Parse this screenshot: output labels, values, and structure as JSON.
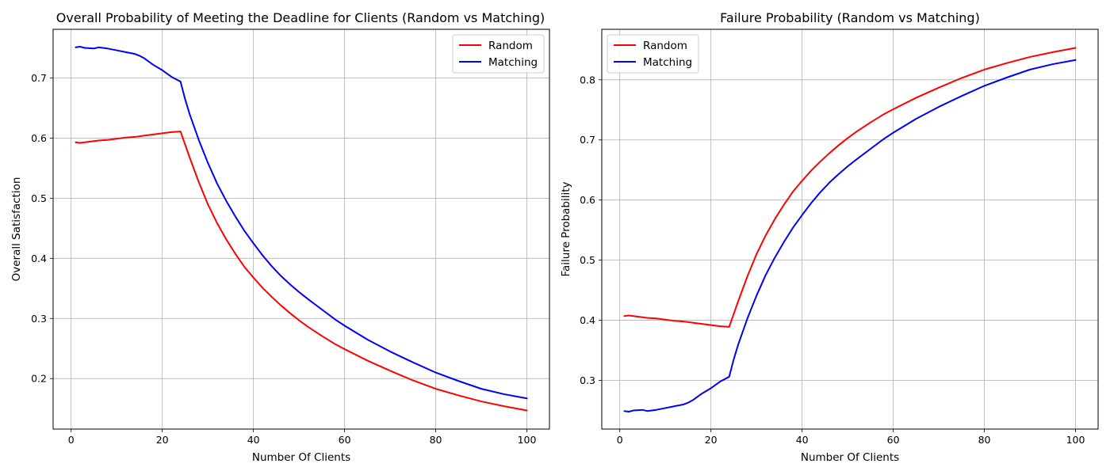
{
  "chart_data": [
    {
      "type": "line",
      "title": "Overall Probability of Meeting the Deadline for Clients (Random vs Matching)",
      "xlabel": "Number Of Clients",
      "ylabel": "Overall Satisfaction",
      "xlim": [
        -3.95,
        104.95
      ],
      "ylim": [
        0.116,
        0.781
      ],
      "xticks": [
        0,
        20,
        40,
        60,
        80,
        100
      ],
      "xtick_labels": [
        "0",
        "20",
        "40",
        "60",
        "80",
        "100"
      ],
      "yticks": [
        0.2,
        0.3,
        0.4,
        0.5,
        0.6,
        0.7
      ],
      "ytick_labels": [
        "0.2",
        "0.3",
        "0.4",
        "0.5",
        "0.6",
        "0.7"
      ],
      "grid": true,
      "legend_position": "top-right",
      "series": [
        {
          "name": "Random",
          "color": "#ff0000",
          "points": [
            [
              1,
              0.593
            ],
            [
              2,
              0.592
            ],
            [
              4,
              0.594
            ],
            [
              6,
              0.596
            ],
            [
              8,
              0.597
            ],
            [
              10,
              0.599
            ],
            [
              12,
              0.601
            ],
            [
              14,
              0.602
            ],
            [
              16,
              0.604
            ],
            [
              18,
              0.606
            ],
            [
              20,
              0.608
            ],
            [
              22,
              0.61
            ],
            [
              24,
              0.611
            ],
            [
              26,
              0.568
            ],
            [
              28,
              0.527
            ],
            [
              30,
              0.49
            ],
            [
              32,
              0.459
            ],
            [
              34,
              0.432
            ],
            [
              36,
              0.408
            ],
            [
              38,
              0.386
            ],
            [
              40,
              0.368
            ],
            [
              42,
              0.351
            ],
            [
              44,
              0.336
            ],
            [
              46,
              0.322
            ],
            [
              48,
              0.309
            ],
            [
              50,
              0.297
            ],
            [
              52,
              0.286
            ],
            [
              55,
              0.271
            ],
            [
              58,
              0.257
            ],
            [
              60,
              0.249
            ],
            [
              65,
              0.23
            ],
            [
              70,
              0.213
            ],
            [
              75,
              0.197
            ],
            [
              80,
              0.183
            ],
            [
              85,
              0.172
            ],
            [
              90,
              0.162
            ],
            [
              95,
              0.154
            ],
            [
              100,
              0.147
            ]
          ]
        },
        {
          "name": "Matching",
          "color": "#0000ff",
          "points": [
            [
              1,
              0.751
            ],
            [
              2,
              0.752
            ],
            [
              3,
              0.75
            ],
            [
              5,
              0.749
            ],
            [
              6,
              0.751
            ],
            [
              8,
              0.749
            ],
            [
              10,
              0.746
            ],
            [
              12,
              0.743
            ],
            [
              14,
              0.74
            ],
            [
              15,
              0.737
            ],
            [
              16,
              0.733
            ],
            [
              18,
              0.722
            ],
            [
              20,
              0.713
            ],
            [
              22,
              0.702
            ],
            [
              24,
              0.694
            ],
            [
              25,
              0.665
            ],
            [
              26,
              0.64
            ],
            [
              28,
              0.597
            ],
            [
              30,
              0.559
            ],
            [
              32,
              0.525
            ],
            [
              34,
              0.496
            ],
            [
              36,
              0.47
            ],
            [
              38,
              0.446
            ],
            [
              40,
              0.425
            ],
            [
              42,
              0.405
            ],
            [
              44,
              0.387
            ],
            [
              46,
              0.371
            ],
            [
              48,
              0.357
            ],
            [
              50,
              0.344
            ],
            [
              52,
              0.332
            ],
            [
              55,
              0.315
            ],
            [
              58,
              0.298
            ],
            [
              60,
              0.288
            ],
            [
              65,
              0.265
            ],
            [
              70,
              0.245
            ],
            [
              75,
              0.227
            ],
            [
              80,
              0.21
            ],
            [
              85,
              0.196
            ],
            [
              90,
              0.183
            ],
            [
              95,
              0.174
            ],
            [
              100,
              0.167
            ]
          ]
        }
      ]
    },
    {
      "type": "line",
      "title": "Failure Probability (Random vs Matching)",
      "xlabel": "Number Of Clients",
      "ylabel": "Failure Probability",
      "xlim": [
        -3.95,
        104.95
      ],
      "ylim": [
        0.219,
        0.884
      ],
      "xticks": [
        0,
        20,
        40,
        60,
        80,
        100
      ],
      "xtick_labels": [
        "0",
        "20",
        "40",
        "60",
        "80",
        "100"
      ],
      "yticks": [
        0.3,
        0.4,
        0.5,
        0.6,
        0.7,
        0.8
      ],
      "ytick_labels": [
        "0.3",
        "0.4",
        "0.5",
        "0.6",
        "0.7",
        "0.8"
      ],
      "grid": true,
      "legend_position": "top-left",
      "series": [
        {
          "name": "Random",
          "color": "#ff0000",
          "points": [
            [
              1,
              0.407
            ],
            [
              2,
              0.408
            ],
            [
              4,
              0.406
            ],
            [
              6,
              0.404
            ],
            [
              8,
              0.403
            ],
            [
              10,
              0.401
            ],
            [
              12,
              0.399
            ],
            [
              14,
              0.398
            ],
            [
              16,
              0.396
            ],
            [
              18,
              0.394
            ],
            [
              20,
              0.392
            ],
            [
              22,
              0.39
            ],
            [
              24,
              0.389
            ],
            [
              26,
              0.432
            ],
            [
              28,
              0.473
            ],
            [
              30,
              0.51
            ],
            [
              32,
              0.541
            ],
            [
              34,
              0.568
            ],
            [
              36,
              0.592
            ],
            [
              38,
              0.614
            ],
            [
              40,
              0.632
            ],
            [
              42,
              0.649
            ],
            [
              44,
              0.664
            ],
            [
              46,
              0.678
            ],
            [
              48,
              0.691
            ],
            [
              50,
              0.703
            ],
            [
              52,
              0.714
            ],
            [
              55,
              0.729
            ],
            [
              58,
              0.743
            ],
            [
              60,
              0.751
            ],
            [
              65,
              0.77
            ],
            [
              70,
              0.787
            ],
            [
              75,
              0.803
            ],
            [
              80,
              0.817
            ],
            [
              85,
              0.828
            ],
            [
              90,
              0.838
            ],
            [
              95,
              0.846
            ],
            [
              100,
              0.853
            ]
          ]
        },
        {
          "name": "Matching",
          "color": "#0000ff",
          "points": [
            [
              1,
              0.249
            ],
            [
              2,
              0.248
            ],
            [
              3,
              0.25
            ],
            [
              5,
              0.251
            ],
            [
              6,
              0.249
            ],
            [
              8,
              0.251
            ],
            [
              10,
              0.254
            ],
            [
              12,
              0.257
            ],
            [
              14,
              0.26
            ],
            [
              15,
              0.263
            ],
            [
              16,
              0.267
            ],
            [
              18,
              0.278
            ],
            [
              20,
              0.287
            ],
            [
              22,
              0.298
            ],
            [
              24,
              0.306
            ],
            [
              25,
              0.335
            ],
            [
              26,
              0.36
            ],
            [
              28,
              0.403
            ],
            [
              30,
              0.441
            ],
            [
              32,
              0.475
            ],
            [
              34,
              0.504
            ],
            [
              36,
              0.53
            ],
            [
              38,
              0.554
            ],
            [
              40,
              0.575
            ],
            [
              42,
              0.595
            ],
            [
              44,
              0.613
            ],
            [
              46,
              0.629
            ],
            [
              48,
              0.643
            ],
            [
              50,
              0.656
            ],
            [
              52,
              0.668
            ],
            [
              55,
              0.685
            ],
            [
              58,
              0.702
            ],
            [
              60,
              0.712
            ],
            [
              65,
              0.735
            ],
            [
              70,
              0.755
            ],
            [
              75,
              0.773
            ],
            [
              80,
              0.79
            ],
            [
              85,
              0.804
            ],
            [
              90,
              0.817
            ],
            [
              95,
              0.826
            ],
            [
              100,
              0.833
            ]
          ]
        }
      ]
    }
  ]
}
